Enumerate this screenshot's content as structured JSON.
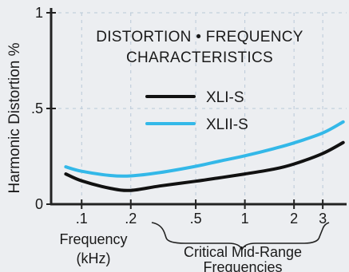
{
  "chart_data": {
    "type": "line",
    "title_lines": [
      "DISTORTION • FREQUENCY",
      "CHARACTERISTICS"
    ],
    "ylabel": "Harmonic Distortion %",
    "xlabel_lines": [
      "Frequency",
      "(kHz)"
    ],
    "annotation_lines": [
      "Critical Mid-Range",
      "Frequencies"
    ],
    "x_scale": "log",
    "xlim": [
      0.065,
      4.2
    ],
    "ylim": [
      0,
      1
    ],
    "y_ticks": [
      {
        "value": 0,
        "label": "0"
      },
      {
        "value": 0.5,
        "label": ".5"
      },
      {
        "value": 1,
        "label": "1"
      }
    ],
    "x_ticks": [
      {
        "value": 0.1,
        "label": ".1"
      },
      {
        "value": 0.2,
        "label": ".2"
      },
      {
        "value": 0.5,
        "label": ".5"
      },
      {
        "value": 1,
        "label": "1"
      },
      {
        "value": 2,
        "label": "2"
      },
      {
        "value": 3,
        "label": "3"
      }
    ],
    "grid": true,
    "legend_position": "upper-right",
    "series": [
      {
        "name": "XLI-S",
        "color": "#111111",
        "x": [
          0.08,
          0.1,
          0.15,
          0.2,
          0.3,
          0.5,
          0.7,
          1,
          1.5,
          2,
          3,
          4
        ],
        "y": [
          0.158,
          0.122,
          0.083,
          0.072,
          0.095,
          0.12,
          0.138,
          0.158,
          0.183,
          0.21,
          0.265,
          0.322
        ]
      },
      {
        "name": "XLII-S",
        "color": "#33b8e8",
        "x": [
          0.08,
          0.1,
          0.15,
          0.2,
          0.3,
          0.5,
          0.7,
          1,
          1.5,
          2,
          3,
          4
        ],
        "y": [
          0.195,
          0.172,
          0.15,
          0.148,
          0.165,
          0.198,
          0.225,
          0.253,
          0.29,
          0.32,
          0.372,
          0.43
        ]
      }
    ]
  }
}
